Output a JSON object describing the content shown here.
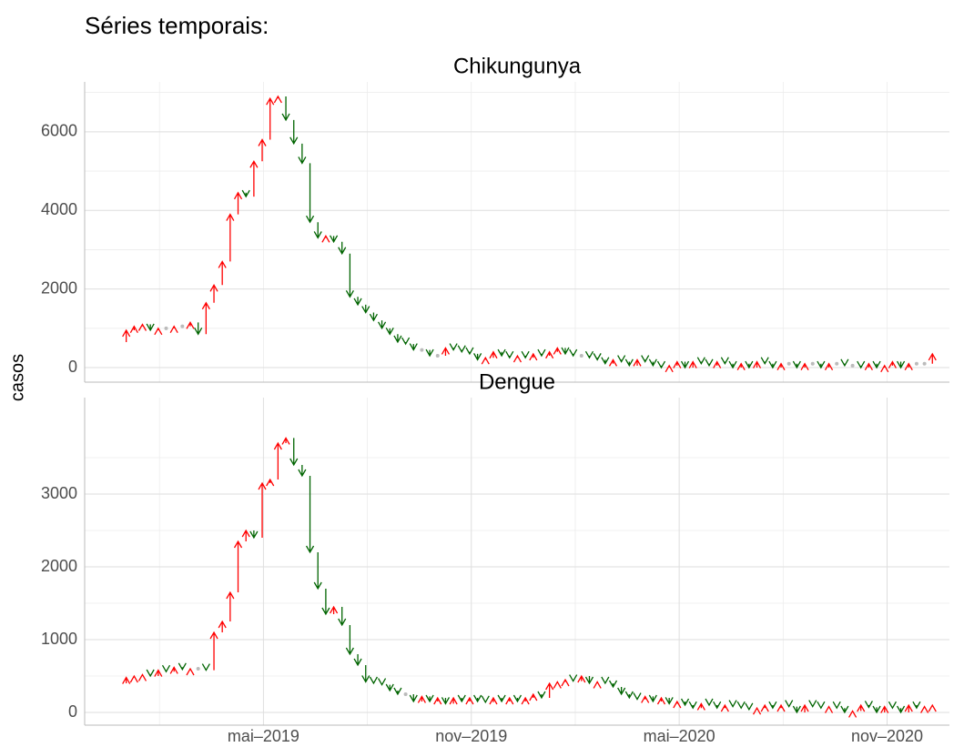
{
  "title": "Séries temporais:",
  "y_label": "casos",
  "chart_data": [
    {
      "type": "arrow",
      "title": "Chikungunya",
      "x": [
        2018.981,
        2019.0,
        2019.019,
        2019.039,
        2019.058,
        2019.077,
        2019.096,
        2019.115,
        2019.135,
        2019.154,
        2019.173,
        2019.192,
        2019.211,
        2019.231,
        2019.25,
        2019.269,
        2019.288,
        2019.307,
        2019.327,
        2019.346,
        2019.365,
        2019.384,
        2019.403,
        2019.423,
        2019.442,
        2019.461,
        2019.48,
        2019.499,
        2019.519,
        2019.538,
        2019.557,
        2019.576,
        2019.595,
        2019.615,
        2019.634,
        2019.653,
        2019.672,
        2019.691,
        2019.711,
        2019.73,
        2019.749,
        2019.768,
        2019.787,
        2019.807,
        2019.826,
        2019.845,
        2019.864,
        2019.883,
        2019.903,
        2019.922,
        2019.941,
        2019.96,
        2019.979,
        2019.999,
        2020.018,
        2020.037,
        2020.056,
        2020.075,
        2020.095,
        2020.114,
        2020.133,
        2020.152,
        2020.171,
        2020.191,
        2020.21,
        2020.229,
        2020.248,
        2020.267,
        2020.287,
        2020.306,
        2020.325,
        2020.344,
        2020.363,
        2020.383,
        2020.402,
        2020.421,
        2020.44,
        2020.459,
        2020.479,
        2020.498,
        2020.517,
        2020.536,
        2020.555,
        2020.575,
        2020.594,
        2020.613,
        2020.632,
        2020.651,
        2020.671,
        2020.69,
        2020.709,
        2020.728,
        2020.747,
        2020.767,
        2020.786,
        2020.805,
        2020.824,
        2020.843,
        2020.863,
        2020.882,
        2020.901,
        2020.92,
        2020.939
      ],
      "values": [
        650,
        950,
        1050,
        1100,
        950,
        1000,
        1000,
        1050,
        1050,
        1150,
        850,
        1650,
        2100,
        2700,
        3900,
        4450,
        4350,
        5250,
        5800,
        6850,
        6900,
        6300,
        5700,
        5200,
        3700,
        3300,
        3350,
        3200,
        2900,
        1800,
        1600,
        1400,
        1200,
        1000,
        850,
        650,
        600,
        450,
        450,
        300,
        300,
        500,
        450,
        400,
        350,
        200,
        250,
        400,
        300,
        250,
        300,
        250,
        350,
        300,
        400,
        500,
        350,
        300,
        300,
        250,
        200,
        100,
        200,
        150,
        50,
        200,
        150,
        50,
        0,
        50,
        150,
        0,
        150,
        100,
        50,
        150,
        100,
        0,
        100,
        0,
        150,
        100,
        0,
        100,
        100,
        0,
        100,
        100,
        0,
        100,
        100,
        50,
        50,
        0,
        100,
        0,
        50,
        150,
        0,
        100,
        100,
        100,
        350
      ],
      "xlim": [
        2018.9,
        2020.98
      ],
      "xgrid": [
        2019.08,
        2019.33,
        2019.58,
        2019.83,
        2020.08,
        2020.33,
        2020.58,
        2020.83
      ],
      "ylim": [
        -370,
        7270
      ],
      "yticks": [
        0,
        2000,
        4000,
        6000
      ],
      "yminor": [
        1000,
        3000,
        5000,
        7000
      ],
      "up_color": "#ff0000",
      "down_color": "#006400",
      "flat_color": "#bbbbbb",
      "grid": true
    },
    {
      "type": "arrow",
      "title": "Dengue",
      "x": [
        2018.981,
        2019.0,
        2019.019,
        2019.039,
        2019.058,
        2019.077,
        2019.096,
        2019.115,
        2019.135,
        2019.154,
        2019.173,
        2019.192,
        2019.211,
        2019.231,
        2019.25,
        2019.269,
        2019.288,
        2019.307,
        2019.327,
        2019.346,
        2019.365,
        2019.384,
        2019.403,
        2019.423,
        2019.442,
        2019.461,
        2019.48,
        2019.499,
        2019.519,
        2019.538,
        2019.557,
        2019.576,
        2019.595,
        2019.615,
        2019.634,
        2019.653,
        2019.672,
        2019.691,
        2019.711,
        2019.73,
        2019.749,
        2019.768,
        2019.787,
        2019.807,
        2019.826,
        2019.845,
        2019.864,
        2019.883,
        2019.903,
        2019.922,
        2019.941,
        2019.96,
        2019.979,
        2019.999,
        2020.018,
        2020.037,
        2020.056,
        2020.075,
        2020.095,
        2020.114,
        2020.133,
        2020.152,
        2020.171,
        2020.191,
        2020.21,
        2020.229,
        2020.248,
        2020.267,
        2020.287,
        2020.306,
        2020.325,
        2020.344,
        2020.363,
        2020.383,
        2020.402,
        2020.421,
        2020.44,
        2020.459,
        2020.479,
        2020.498,
        2020.517,
        2020.536,
        2020.555,
        2020.575,
        2020.594,
        2020.613,
        2020.632,
        2020.651,
        2020.671,
        2020.69,
        2020.709,
        2020.728,
        2020.747,
        2020.767,
        2020.786,
        2020.805,
        2020.824,
        2020.843,
        2020.863,
        2020.882,
        2020.901,
        2020.92,
        2020.939
      ],
      "values": [
        400,
        480,
        500,
        520,
        500,
        580,
        560,
        620,
        590,
        600,
        600,
        580,
        1100,
        1250,
        1650,
        2350,
        2500,
        2400,
        3150,
        3200,
        3700,
        3770,
        3400,
        3250,
        2200,
        1700,
        1350,
        1450,
        1200,
        800,
        650,
        420,
        400,
        380,
        300,
        250,
        250,
        150,
        220,
        150,
        200,
        120,
        200,
        150,
        200,
        150,
        140,
        200,
        150,
        200,
        150,
        200,
        250,
        200,
        400,
        420,
        450,
        430,
        500,
        400,
        420,
        400,
        350,
        250,
        200,
        180,
        220,
        150,
        200,
        120,
        150,
        100,
        60,
        120,
        100,
        60,
        100,
        80,
        60,
        40,
        60,
        100,
        60,
        100,
        80,
        0,
        100,
        80,
        60,
        80,
        60,
        0,
        20,
        100,
        70,
        0,
        80,
        60,
        0,
        100,
        60,
        80,
        100
      ],
      "xlim": [
        2018.9,
        2020.98
      ],
      "xticks": [
        {
          "value": 2019.33,
          "label": "mai–2019"
        },
        {
          "value": 2019.83,
          "label": "nov–2019"
        },
        {
          "value": 2020.33,
          "label": "mai–2020"
        },
        {
          "value": 2020.83,
          "label": "nov–2020"
        }
      ],
      "xgrid": [
        2019.08,
        2019.58,
        2020.08,
        2020.58
      ],
      "ylim": [
        -175,
        4325
      ],
      "yticks": [
        0,
        1000,
        2000,
        3000
      ],
      "yminor": [
        500,
        1500,
        2500,
        3500
      ],
      "up_color": "#ff0000",
      "down_color": "#006400",
      "flat_color": "#bbbbbb",
      "grid": true
    }
  ]
}
